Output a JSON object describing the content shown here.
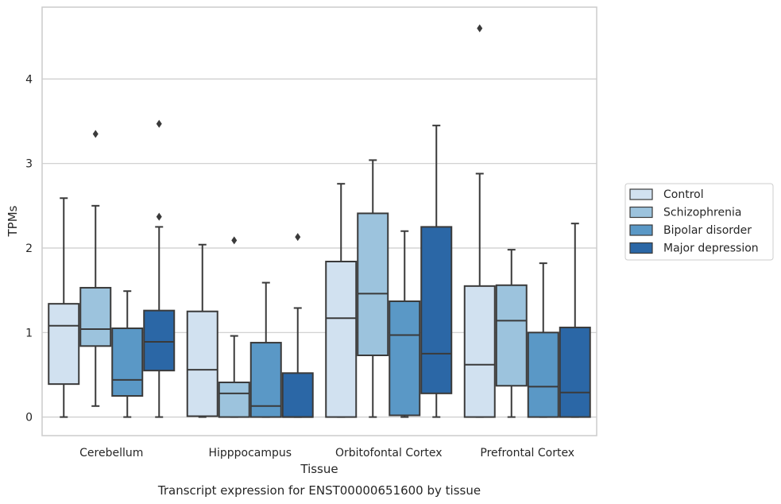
{
  "chart_data": {
    "type": "box",
    "xlabel": "Tissue",
    "ylabel": "TPMs",
    "caption": "Transcript expression for ENST00000651600 by tissue",
    "ylim": [
      -0.22,
      4.85
    ],
    "yticks": [
      0,
      1,
      2,
      3,
      4
    ],
    "grid": true,
    "legend_position": "right",
    "categories": [
      "Cerebellum",
      "Hipppocampus",
      "Orbitofontal Cortex",
      "Prefrontal Cortex"
    ],
    "series": [
      {
        "name": "Control",
        "color": "#d1e1f0",
        "boxes": [
          {
            "whislo": 0.0,
            "q1": 0.39,
            "med": 1.08,
            "q3": 1.34,
            "whishi": 2.59,
            "fliers": []
          },
          {
            "whislo": 0.0,
            "q1": 0.01,
            "med": 0.56,
            "q3": 1.25,
            "whishi": 2.04,
            "fliers": []
          },
          {
            "whislo": 0.0,
            "q1": 0.0,
            "med": 1.17,
            "q3": 1.84,
            "whishi": 2.76,
            "fliers": []
          },
          {
            "whislo": 0.0,
            "q1": 0.0,
            "med": 0.62,
            "q3": 1.55,
            "whishi": 2.88,
            "fliers": [
              4.6
            ]
          }
        ]
      },
      {
        "name": "Schizophrenia",
        "color": "#9cc3dd",
        "boxes": [
          {
            "whislo": 0.13,
            "q1": 0.84,
            "med": 1.04,
            "q3": 1.53,
            "whishi": 2.5,
            "fliers": [
              3.35
            ]
          },
          {
            "whislo": 0.0,
            "q1": 0.0,
            "med": 0.28,
            "q3": 0.41,
            "whishi": 0.96,
            "fliers": [
              2.09
            ]
          },
          {
            "whislo": 0.0,
            "q1": 0.73,
            "med": 1.46,
            "q3": 2.41,
            "whishi": 3.04,
            "fliers": []
          },
          {
            "whislo": 0.0,
            "q1": 0.37,
            "med": 1.14,
            "q3": 1.56,
            "whishi": 1.98,
            "fliers": []
          }
        ]
      },
      {
        "name": "Bipolar disorder",
        "color": "#5a98c6",
        "boxes": [
          {
            "whislo": 0.0,
            "q1": 0.25,
            "med": 0.44,
            "q3": 1.05,
            "whishi": 1.49,
            "fliers": []
          },
          {
            "whislo": 0.0,
            "q1": 0.0,
            "med": 0.13,
            "q3": 0.88,
            "whishi": 1.59,
            "fliers": []
          },
          {
            "whislo": 0.0,
            "q1": 0.02,
            "med": 0.97,
            "q3": 1.37,
            "whishi": 2.2,
            "fliers": []
          },
          {
            "whislo": 0.0,
            "q1": 0.0,
            "med": 0.36,
            "q3": 1.0,
            "whishi": 1.82,
            "fliers": []
          }
        ]
      },
      {
        "name": "Major depression",
        "color": "#2b67a6",
        "boxes": [
          {
            "whislo": 0.0,
            "q1": 0.55,
            "med": 0.89,
            "q3": 1.26,
            "whishi": 2.25,
            "fliers": [
              2.37,
              3.47
            ]
          },
          {
            "whislo": 0.0,
            "q1": 0.0,
            "med": 0.0,
            "q3": 0.52,
            "whishi": 1.29,
            "fliers": [
              2.13
            ]
          },
          {
            "whislo": 0.0,
            "q1": 0.28,
            "med": 0.75,
            "q3": 2.25,
            "whishi": 3.45,
            "fliers": []
          },
          {
            "whislo": 0.0,
            "q1": 0.0,
            "med": 0.29,
            "q3": 1.06,
            "whishi": 2.29,
            "fliers": []
          }
        ]
      }
    ]
  }
}
